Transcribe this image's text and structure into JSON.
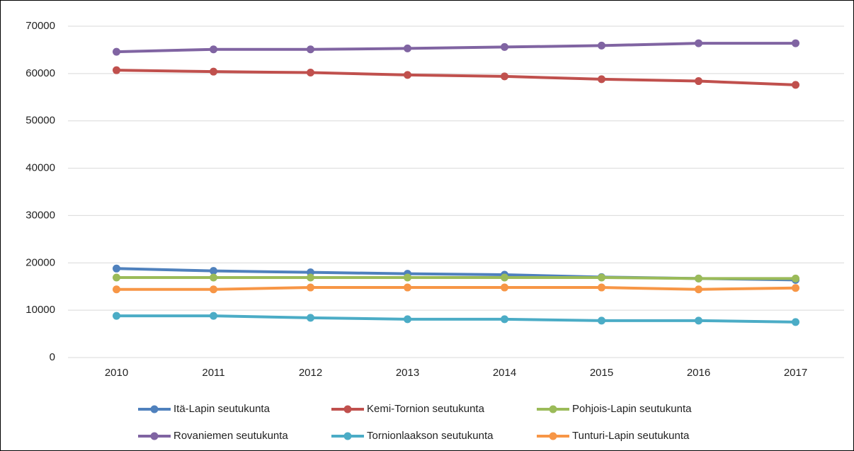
{
  "chart_data": {
    "type": "line",
    "categories": [
      "2010",
      "2011",
      "2012",
      "2013",
      "2014",
      "2015",
      "2016",
      "2017"
    ],
    "series": [
      {
        "name": "Itä-Lapin seutukunta",
        "color": "#4f81bd",
        "values": [
          18800,
          18300,
          18000,
          17700,
          17500,
          17000,
          16700,
          16400
        ]
      },
      {
        "name": "Kemi-Tornion seutukunta",
        "color": "#c0504d",
        "values": [
          60700,
          60400,
          60200,
          59700,
          59400,
          58800,
          58400,
          57600
        ]
      },
      {
        "name": "Pohjois-Lapin seutukunta",
        "color": "#9bbb59",
        "values": [
          16900,
          16900,
          16900,
          16900,
          16900,
          16900,
          16700,
          16700
        ]
      },
      {
        "name": "Rovaniemen seutukunta",
        "color": "#8064a2",
        "values": [
          64600,
          65100,
          65100,
          65300,
          65600,
          65900,
          66400,
          66400
        ]
      },
      {
        "name": "Tornionlaakson seutukunta",
        "color": "#4bacc6",
        "values": [
          8800,
          8800,
          8400,
          8100,
          8100,
          7800,
          7800,
          7500
        ]
      },
      {
        "name": "Tunturi-Lapin seutukunta",
        "color": "#f79646",
        "values": [
          14400,
          14400,
          14800,
          14800,
          14800,
          14800,
          14400,
          14700
        ]
      }
    ],
    "ylim": [
      0,
      70000
    ],
    "yticks": [
      0,
      10000,
      20000,
      30000,
      40000,
      50000,
      60000,
      70000
    ],
    "grid": true,
    "legend": "bottom"
  }
}
